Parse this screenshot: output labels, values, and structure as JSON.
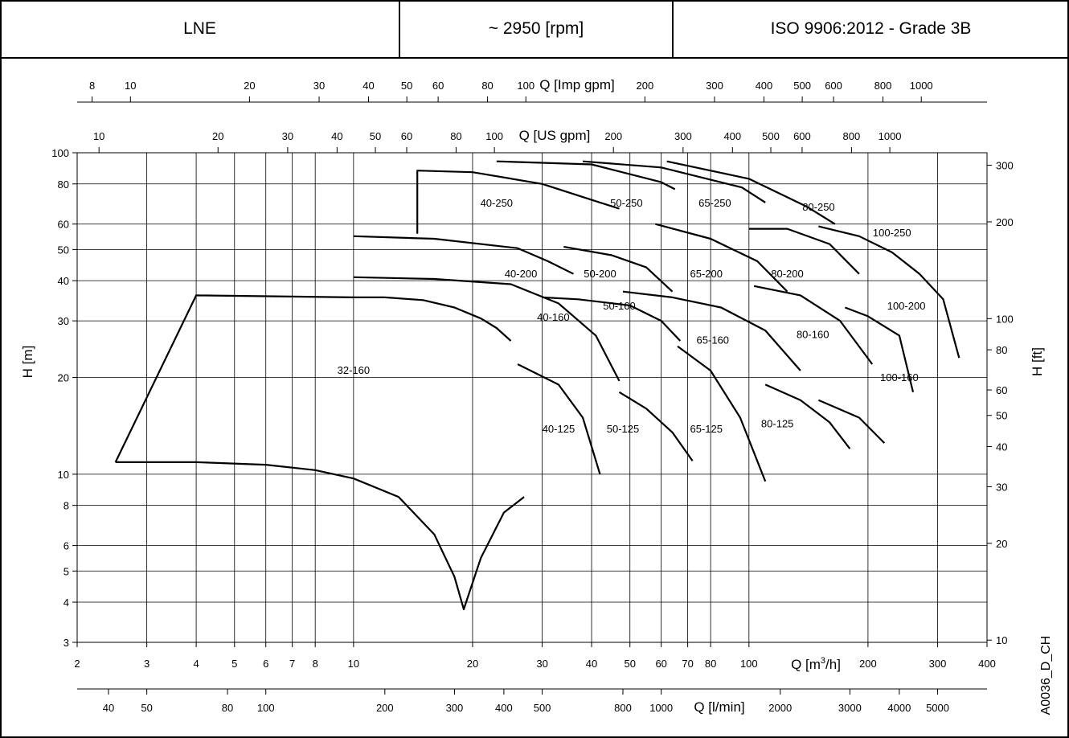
{
  "header": {
    "model": "LNE",
    "speed": "~ 2950 [rpm]",
    "standard": "ISO 9906:2012 - Grade 3B"
  },
  "chart_data": {
    "type": "line",
    "title": "",
    "x_scale": "log",
    "y_scale": "log",
    "xlim": [
      2,
      400
    ],
    "ylim": [
      3,
      100
    ],
    "grid": true,
    "legend": "none",
    "axes": {
      "bottom_label": "Q [m³/h]",
      "bottom_label_main": "Q [m",
      "bottom_label_sup": "3",
      "bottom_label_end": "/h]",
      "lmin_label": "Q [l/min]",
      "usgpm_label": "Q [US gpm]",
      "impgpm_label": "Q [Imp gpm]",
      "left_label": "H [m]",
      "right_label": "H [ft]",
      "bottom_ticks": [
        2,
        3,
        4,
        5,
        6,
        7,
        8,
        10,
        20,
        30,
        40,
        50,
        60,
        70,
        80,
        100,
        200,
        300,
        400
      ],
      "left_ticks": [
        3,
        4,
        5,
        6,
        8,
        10,
        20,
        30,
        40,
        50,
        60,
        80,
        100
      ],
      "right_ticks": [
        10,
        20,
        30,
        40,
        50,
        60,
        80,
        100,
        200,
        300
      ],
      "lmin_ticks": [
        40,
        50,
        80,
        100,
        200,
        300,
        400,
        500,
        800,
        1000,
        2000,
        3000,
        4000,
        5000
      ],
      "usgpm_ticks": [
        10,
        20,
        30,
        40,
        50,
        60,
        80,
        100,
        200,
        300,
        400,
        500,
        600,
        800,
        1000
      ],
      "impgpm_ticks": [
        8,
        10,
        20,
        30,
        40,
        50,
        60,
        80,
        100,
        200,
        300,
        400,
        500,
        600,
        800,
        1000
      ]
    },
    "series": [
      {
        "name": "32-160",
        "label": [
          10,
          20.5
        ],
        "outline": [
          [
            2.5,
            10.9
          ],
          [
            4,
            36
          ],
          [
            10,
            35.5
          ],
          [
            12,
            35.5
          ]
        ]
      },
      {
        "name": "32-160 curve",
        "label": null,
        "outline": [
          [
            2.5,
            10.9
          ],
          [
            4,
            10.9
          ],
          [
            6,
            10.7
          ],
          [
            8,
            10.3
          ],
          [
            10,
            9.7
          ],
          [
            13,
            8.5
          ],
          [
            16,
            6.5
          ],
          [
            18,
            4.8
          ],
          [
            19,
            3.8
          ],
          [
            21,
            5.5
          ],
          [
            24,
            7.6
          ],
          [
            27,
            8.5
          ]
        ]
      },
      {
        "name": "32-160 lower",
        "label": null,
        "outline": [
          [
            12,
            35.5
          ],
          [
            15,
            34.8
          ],
          [
            18,
            33
          ],
          [
            21,
            30.5
          ],
          [
            23,
            28.5
          ],
          [
            25,
            26
          ]
        ]
      },
      {
        "name": "40-160",
        "label": [
          32,
          30
        ],
        "outline": [
          [
            10,
            41
          ],
          [
            16,
            40.5
          ],
          [
            25,
            39
          ],
          [
            33,
            34
          ],
          [
            41,
            27
          ],
          [
            47,
            19.5
          ]
        ]
      },
      {
        "name": "40-125",
        "label": [
          33,
          13.5
        ],
        "outline": [
          [
            26,
            22
          ],
          [
            33,
            19
          ],
          [
            38,
            15
          ],
          [
            42,
            10
          ]
        ]
      },
      {
        "name": "40-200",
        "label": [
          26.5,
          41
        ],
        "outline": [
          [
            10,
            55
          ],
          [
            16,
            54
          ],
          [
            26,
            50.5
          ],
          [
            31,
            46
          ],
          [
            36,
            42
          ]
        ]
      },
      {
        "name": "40-250",
        "label": [
          23,
          68
        ],
        "outline": [
          [
            14.5,
            56
          ],
          [
            14.5,
            88
          ],
          [
            20,
            87
          ],
          [
            30,
            80
          ],
          [
            42,
            70
          ],
          [
            47,
            67
          ]
        ]
      },
      {
        "name": "50-250",
        "label": [
          49,
          68
        ],
        "outline": [
          [
            23,
            94
          ],
          [
            40,
            92
          ],
          [
            60,
            81
          ],
          [
            65,
            77
          ]
        ]
      },
      {
        "name": "50-200",
        "label": [
          42,
          41
        ],
        "outline": [
          [
            34,
            51
          ],
          [
            45,
            48
          ],
          [
            55,
            44
          ],
          [
            64,
            37
          ]
        ]
      },
      {
        "name": "50-160",
        "label": [
          47,
          32.5
        ],
        "outline": [
          [
            30,
            35.5
          ],
          [
            37,
            35
          ],
          [
            50,
            33.5
          ],
          [
            60,
            30
          ],
          [
            67,
            26
          ]
        ]
      },
      {
        "name": "50-125",
        "label": [
          48,
          13.5
        ],
        "outline": [
          [
            47,
            18
          ],
          [
            55,
            16
          ],
          [
            64,
            13.5
          ],
          [
            72,
            11
          ]
        ]
      },
      {
        "name": "65-250",
        "label": [
          82,
          68
        ],
        "outline": [
          [
            38,
            94
          ],
          [
            60,
            90
          ],
          [
            96,
            78
          ],
          [
            110,
            70
          ]
        ]
      },
      {
        "name": "65-200",
        "label": [
          78,
          41
        ],
        "outline": [
          [
            58,
            60
          ],
          [
            80,
            54
          ],
          [
            105,
            46
          ],
          [
            125,
            37
          ]
        ]
      },
      {
        "name": "65-160",
        "label": [
          81,
          25.5
        ],
        "outline": [
          [
            48,
            37
          ],
          [
            64,
            35.5
          ],
          [
            85,
            33
          ],
          [
            110,
            28
          ],
          [
            135,
            21
          ]
        ]
      },
      {
        "name": "65-125",
        "label": [
          78,
          13.5
        ],
        "outline": [
          [
            66,
            25
          ],
          [
            80,
            21
          ],
          [
            95,
            15
          ],
          [
            110,
            9.5
          ]
        ]
      },
      {
        "name": "80-250",
        "label": [
          150,
          66
        ],
        "outline": [
          [
            62,
            94
          ],
          [
            100,
            83
          ],
          [
            140,
            68
          ],
          [
            165,
            60
          ]
        ]
      },
      {
        "name": "80-200",
        "label": [
          125,
          41
        ],
        "outline": [
          [
            100,
            58
          ],
          [
            125,
            58
          ],
          [
            160,
            52
          ],
          [
            190,
            42
          ]
        ]
      },
      {
        "name": "80-160",
        "label": [
          145,
          26.5
        ],
        "outline": [
          [
            103,
            38.5
          ],
          [
            135,
            36
          ],
          [
            170,
            30
          ],
          [
            205,
            22
          ]
        ]
      },
      {
        "name": "80-125",
        "label": [
          118,
          14
        ],
        "outline": [
          [
            110,
            19
          ],
          [
            135,
            17
          ],
          [
            160,
            14.5
          ],
          [
            180,
            12
          ]
        ]
      },
      {
        "name": "100-250",
        "label": [
          230,
          55
        ],
        "outline": [
          [
            150,
            59
          ],
          [
            190,
            55
          ],
          [
            230,
            49
          ],
          [
            270,
            42
          ],
          [
            310,
            35
          ],
          [
            340,
            23
          ]
        ]
      },
      {
        "name": "100-200",
        "label": [
          250,
          32.5
        ],
        "outline": [
          [
            175,
            33
          ],
          [
            200,
            31
          ],
          [
            240,
            27
          ],
          [
            260,
            18
          ]
        ]
      },
      {
        "name": "100-160",
        "label": [
          240,
          19.5
        ],
        "outline": [
          [
            150,
            17
          ],
          [
            190,
            15
          ],
          [
            220,
            12.5
          ]
        ]
      }
    ]
  },
  "code_label": "A0036_D_CH"
}
